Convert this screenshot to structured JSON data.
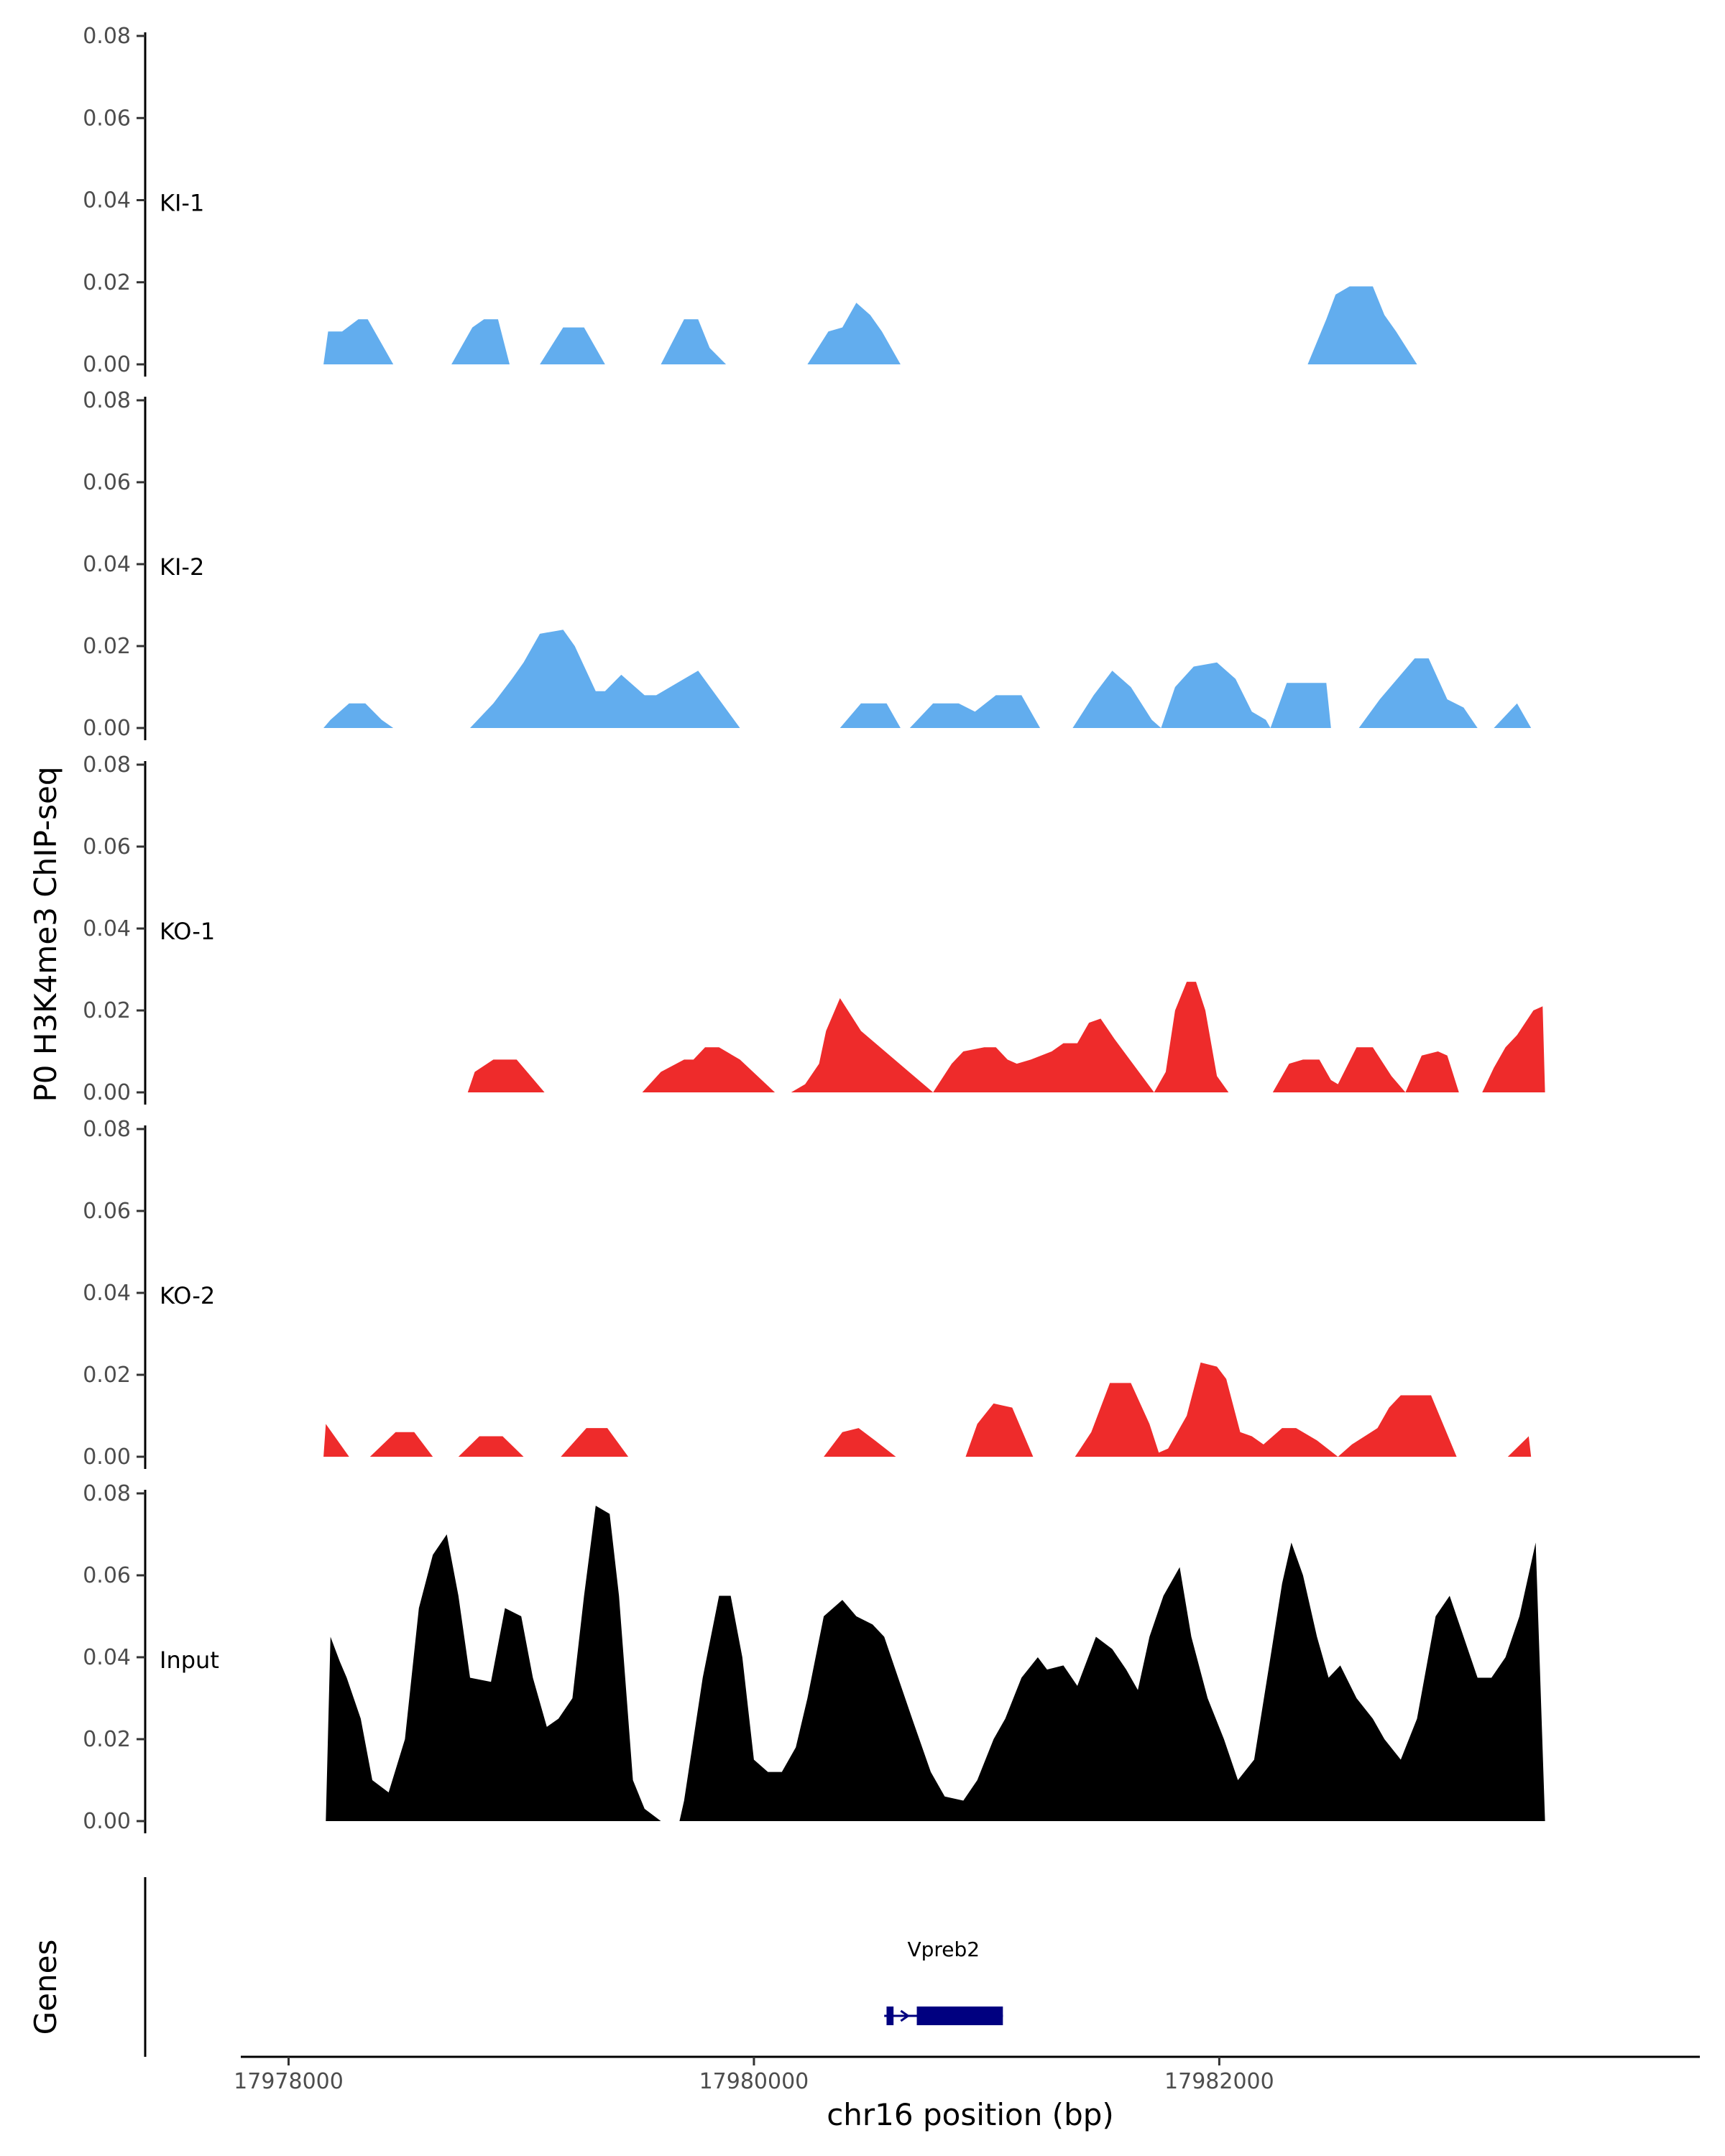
{
  "chart_data": {
    "type": "area",
    "ylabel": "P0 H3K4me3 ChIP-seq",
    "xlabel": "chr16 position (bp)",
    "ylim": [
      0,
      0.08
    ],
    "y_ticks": [
      "0.00",
      "0.02",
      "0.04",
      "0.06",
      "0.08"
    ],
    "xlim": [
      17977810,
      17984050
    ],
    "x_ticks": [
      17978000,
      17980000,
      17982000
    ],
    "x_tick_labels": [
      "17978000",
      "17980000",
      "17982000"
    ],
    "grid": false,
    "series": [
      {
        "name": "KI-1",
        "color": "#62adee",
        "x": [
          17978150,
          17978170,
          17978230,
          17978300,
          17978340,
          17978400,
          17978450,
          17978700,
          17978790,
          17978840,
          17978900,
          17978950,
          17979080,
          17979180,
          17979270,
          17979360,
          17979600,
          17979700,
          17979760,
          17979810,
          17979880,
          17979930,
          17980230,
          17980320,
          17980380,
          17980440,
          17980500,
          17980550,
          17980630,
          17982380,
          17982460,
          17982500,
          17982560,
          17982660,
          17982710,
          17982760,
          17982850
        ],
        "y": [
          0,
          0.008,
          0.008,
          0.011,
          0.011,
          0.005,
          0,
          0,
          0.009,
          0.011,
          0.011,
          0,
          0,
          0.009,
          0.009,
          0,
          0,
          0.011,
          0.011,
          0.004,
          0,
          0,
          0,
          0.008,
          0.009,
          0.015,
          0.012,
          0.008,
          0,
          0,
          0.011,
          0.017,
          0.019,
          0.019,
          0.012,
          0.008,
          0
        ]
      },
      {
        "name": "KI-2",
        "color": "#62adee",
        "x": [
          17978150,
          17978180,
          17978260,
          17978330,
          17978400,
          17978450,
          17978780,
          17978880,
          17978960,
          17979010,
          17979080,
          17979180,
          17979230,
          17979320,
          17979360,
          17979430,
          17979530,
          17979580,
          17979700,
          17979760,
          17979940,
          17980370,
          17980460,
          17980570,
          17980630,
          17980670,
          17980770,
          17980880,
          17980950,
          17981040,
          17981150,
          17981230,
          17981370,
          17981460,
          17981540,
          17981620,
          17981710,
          17981750,
          17981810,
          17981890,
          17981990,
          17982070,
          17982140,
          17982200,
          17982220,
          17982290,
          17982370,
          17982460,
          17982480,
          17982600,
          17982690,
          17982780,
          17982840,
          17982900,
          17982980,
          17983050,
          17983110,
          17983180,
          17983280,
          17983340
        ],
        "y": [
          0,
          0.002,
          0.006,
          0.006,
          0.002,
          0,
          0,
          0.006,
          0.012,
          0.016,
          0.023,
          0.024,
          0.02,
          0.009,
          0.009,
          0.013,
          0.008,
          0.008,
          0.012,
          0.014,
          0,
          0,
          0.006,
          0.006,
          0,
          0,
          0.006,
          0.006,
          0.004,
          0.008,
          0.008,
          0,
          0,
          0.008,
          0.014,
          0.01,
          0.002,
          0,
          0.01,
          0.015,
          0.016,
          0.012,
          0.004,
          0.002,
          0,
          0.011,
          0.011,
          0.011,
          0,
          0,
          0.007,
          0.013,
          0.017,
          0.017,
          0.007,
          0.005,
          0,
          0,
          0.006,
          0
        ],
        "_x_range": [
          17978150,
          17983340
        ]
      },
      {
        "name": "KO-1",
        "color": "#ee2b2b",
        "x": [
          17978770,
          17978800,
          17978880,
          17978980,
          17979010,
          17979100,
          17979520,
          17979600,
          17979700,
          17979740,
          17979790,
          17979850,
          17979940,
          17980090,
          17980160,
          17980220,
          17980280,
          17980310,
          17980370,
          17980460,
          17980770,
          17980850,
          17980900,
          17980990,
          17981040,
          17981090,
          17981130,
          17981190,
          17981280,
          17981330,
          17981390,
          17981440,
          17981490,
          17981550,
          17981720,
          17981770,
          17981810,
          17981860,
          17981900,
          17981940,
          17981990,
          17982040,
          17982230,
          17982300,
          17982360,
          17982430,
          17982480,
          17982510,
          17982590,
          17982660,
          17982740,
          17982800,
          17982870,
          17982940,
          17982980,
          17983030,
          17983130,
          17983180,
          17983230,
          17983280,
          17983350,
          17983390,
          17983400
        ],
        "y": [
          0,
          0.005,
          0.008,
          0.008,
          0.006,
          0,
          0,
          0.005,
          0.008,
          0.008,
          0.011,
          0.011,
          0.008,
          0,
          0,
          0.002,
          0.007,
          0.015,
          0.023,
          0.015,
          0,
          0.007,
          0.01,
          0.011,
          0.011,
          0.008,
          0.007,
          0.008,
          0.01,
          0.012,
          0.012,
          0.017,
          0.018,
          0.013,
          0,
          0.005,
          0.02,
          0.027,
          0.027,
          0.02,
          0.004,
          0,
          0,
          0.007,
          0.008,
          0.008,
          0.003,
          0.002,
          0.011,
          0.011,
          0.004,
          0,
          0.009,
          0.01,
          0.009,
          0,
          0,
          0.006,
          0.011,
          0.014,
          0.02,
          0.021,
          0
        ],
        "_x_range": [
          17978770,
          17983400
        ]
      },
      {
        "name": "KO-2",
        "color": "#ee2b2b",
        "x": [
          17978150,
          17978160,
          17978260,
          17978350,
          17978460,
          17978540,
          17978620,
          17978730,
          17978820,
          17978920,
          17979010,
          17979170,
          17979280,
          17979370,
          17979460,
          17980300,
          17980380,
          17980450,
          17980520,
          17980610,
          17980910,
          17980960,
          17981030,
          17981110,
          17981200,
          17981380,
          17981450,
          17981530,
          17981620,
          17981700,
          17981740,
          17981780,
          17981860,
          17981920,
          17981990,
          17982030,
          17982090,
          17982140,
          17982190,
          17982270,
          17982330,
          17982420,
          17982510,
          17982570,
          17982680,
          17982730,
          17982780,
          17982850,
          17982910,
          17983020,
          17983240,
          17983330,
          17983340
        ],
        "y": [
          0,
          0.008,
          0,
          0,
          0.006,
          0.006,
          0,
          0,
          0.005,
          0.005,
          0,
          0,
          0.007,
          0.007,
          0,
          0,
          0.006,
          0.007,
          0.004,
          0,
          0,
          0.008,
          0.013,
          0.012,
          0,
          0,
          0.006,
          0.018,
          0.018,
          0.008,
          0.001,
          0.002,
          0.01,
          0.023,
          0.022,
          0.019,
          0.006,
          0.005,
          0.003,
          0.007,
          0.007,
          0.004,
          0,
          0.003,
          0.007,
          0.012,
          0.015,
          0.015,
          0.015,
          0,
          0,
          0.005,
          0
        ],
        "_x_range": [
          17978150,
          17983340
        ]
      },
      {
        "name": "Input",
        "color": "#000000",
        "x": [
          17978160,
          17978180,
          17978220,
          17978250,
          17978310,
          17978360,
          17978430,
          17978500,
          17978560,
          17978620,
          17978680,
          17978730,
          17978780,
          17978870,
          17978930,
          17979000,
          17979050,
          17979110,
          17979160,
          17979220,
          17979270,
          17979320,
          17979380,
          17979420,
          17979480,
          17979530,
          17979600,
          17979680,
          17979700,
          17979780,
          17979850,
          17979900,
          17979950,
          17980000,
          17980060,
          17980120,
          17980180,
          17980230,
          17980300,
          17980380,
          17980440,
          17980510,
          17980560,
          17980620,
          17980680,
          17980760,
          17980820,
          17980900,
          17980960,
          17981030,
          17981080,
          17981150,
          17981220,
          17981260,
          17981330,
          17981390,
          17981470,
          17981540,
          17981600,
          17981650,
          17981700,
          17981760,
          17981830,
          17981880,
          17981950,
          17982020,
          17982080,
          17982150,
          17982220,
          17982270,
          17982310,
          17982360,
          17982420,
          17982470,
          17982520,
          17982590,
          17982660,
          17982710,
          17982780,
          17982850,
          17982930,
          17982990,
          17983050,
          17983110,
          17983170,
          17983230,
          17983290,
          17983360,
          17983400
        ],
        "y": [
          0,
          0.045,
          0.039,
          0.035,
          0.025,
          0.01,
          0.007,
          0.02,
          0.052,
          0.065,
          0.07,
          0.055,
          0.035,
          0.034,
          0.052,
          0.05,
          0.035,
          0.023,
          0.025,
          0.03,
          0.055,
          0.077,
          0.075,
          0.055,
          0.01,
          0.003,
          0,
          0,
          0.005,
          0.035,
          0.055,
          0.055,
          0.04,
          0.015,
          0.012,
          0.012,
          0.018,
          0.03,
          0.05,
          0.054,
          0.05,
          0.048,
          0.045,
          0.035,
          0.025,
          0.012,
          0.006,
          0.005,
          0.01,
          0.02,
          0.025,
          0.035,
          0.04,
          0.037,
          0.038,
          0.033,
          0.045,
          0.042,
          0.037,
          0.032,
          0.045,
          0.055,
          0.062,
          0.045,
          0.03,
          0.02,
          0.01,
          0.015,
          0.04,
          0.058,
          0.068,
          0.06,
          0.045,
          0.035,
          0.038,
          0.03,
          0.025,
          0.02,
          0.015,
          0.025,
          0.05,
          0.055,
          0.045,
          0.035,
          0.035,
          0.04,
          0.05,
          0.068,
          0
        ],
        "_x_range": [
          17978160,
          17983400
        ]
      }
    ],
    "gene_track": {
      "ylabel": "Genes",
      "genes": [
        {
          "name": "Vpreb2",
          "start": 17980560,
          "end": 17981070,
          "strand": "+",
          "exons": [
            [
              17980570,
              17980600
            ],
            [
              17980700,
              17981070
            ]
          ],
          "color": "#000080"
        }
      ]
    }
  }
}
